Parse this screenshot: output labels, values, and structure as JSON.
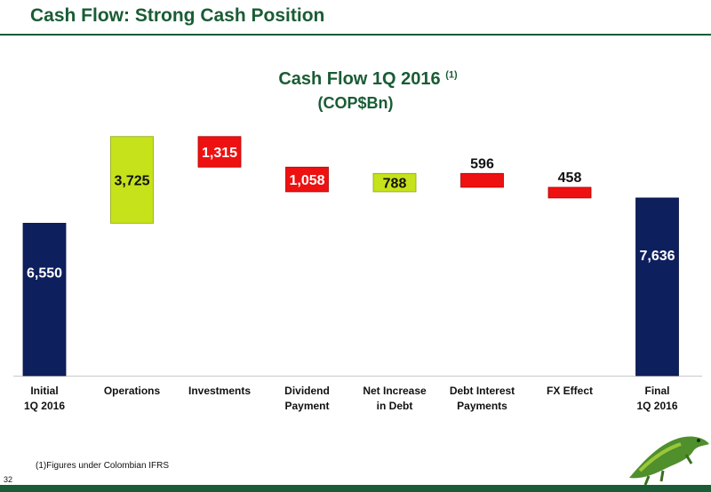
{
  "slide": {
    "title": "Cash Flow: Strong Cash Position",
    "page_number": "32",
    "footnote": "(1)Figures under Colombian IFRS"
  },
  "chart_data": {
    "type": "waterfall",
    "title": "Cash Flow 1Q 2016",
    "title_superscript": "(1)",
    "subtitle": "(COP$Bn)",
    "categories": [
      "Initial\n1Q 2016",
      "Operations",
      "Investments",
      "Dividend\nPayment",
      "Net Increase\nin Debt",
      "Debt Interest\nPayments",
      "FX Effect",
      "Final\n1Q 2016"
    ],
    "values": [
      6550,
      3725,
      -1315,
      -1058,
      788,
      -596,
      -458,
      7636
    ],
    "kinds": [
      "total",
      "increase",
      "decrease",
      "decrease",
      "increase",
      "decrease",
      "decrease",
      "total"
    ],
    "data_labels": [
      "6,550",
      "3,725",
      "1,315",
      "1,058",
      "788",
      "596",
      "458",
      "7,636"
    ],
    "ylim": [
      0,
      10800
    ],
    "grid": false,
    "legend": "none",
    "colors": {
      "total": "#0e1f5e",
      "increase": "#c6e21a",
      "decrease": "#ee1111"
    }
  }
}
